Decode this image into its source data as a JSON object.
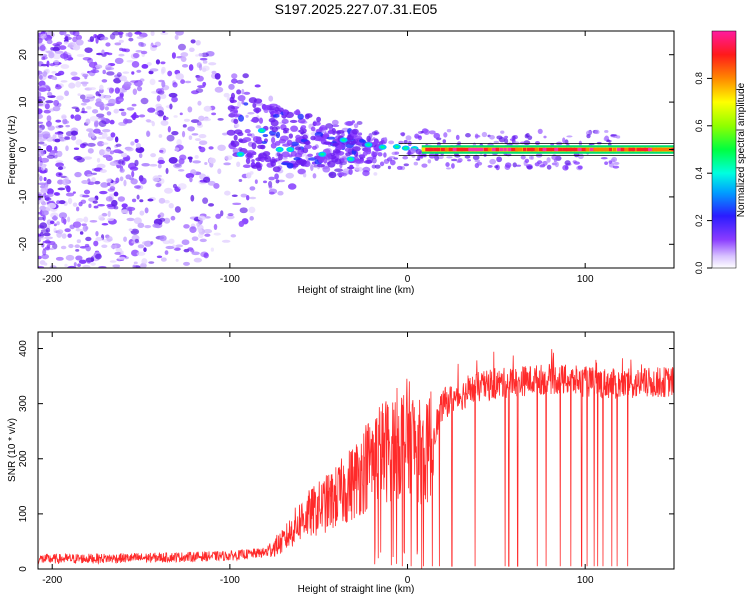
{
  "title": "S197.2025.227.07.31.E05",
  "colors": {
    "snr_line": "#ff2a2a",
    "spectro_base": "#7a2cff",
    "axis": "#000000",
    "background": "#ffffff"
  },
  "chart_data": [
    {
      "type": "heatmap",
      "name": "spectrogram",
      "xlabel": "Height of straight line (km)",
      "ylabel": "Frequency (Hz)",
      "xlim": [
        -208,
        150
      ],
      "ylim": [
        -25,
        25
      ],
      "xticks": [
        -200,
        -100,
        0,
        100
      ],
      "yticks": [
        -20,
        -10,
        0,
        10,
        20
      ],
      "xtick_labels": [
        "-200",
        "-100",
        "0",
        "100"
      ],
      "ytick_labels": [
        "-20",
        "-10",
        "0",
        "10",
        "20"
      ],
      "colorbar": {
        "label": "Normalized spectral amplitude",
        "range": [
          0,
          1
        ],
        "ticks": [
          0.0,
          0.2,
          0.4,
          0.6,
          0.8
        ],
        "tick_labels": [
          "0.0",
          "0.2",
          "0.4",
          "0.6",
          "0.8"
        ],
        "colormap": "rainbow (purple-blue-cyan-green-yellow-orange-red-pink)"
      },
      "features": [
        {
          "name": "scattered noise",
          "x_range": [
            -208,
            -80
          ],
          "freq_range": [
            -25,
            25
          ],
          "amplitude": 0.05
        },
        {
          "name": "converging band",
          "x_range": [
            -100,
            -20
          ],
          "freq_range": [
            -8,
            12
          ],
          "amplitude": 0.2
        },
        {
          "name": "narrow signal line",
          "x_range": [
            10,
            150
          ],
          "freq": 0,
          "amplitude": 0.9
        }
      ]
    },
    {
      "type": "line",
      "name": "snr",
      "xlabel": "Height of straight line (km)",
      "ylabel": "SNR (10 * v/v)",
      "xlim": [
        -208,
        150
      ],
      "ylim": [
        0,
        430
      ],
      "xticks": [
        -200,
        -100,
        0,
        100
      ],
      "yticks": [
        0,
        100,
        200,
        300,
        400
      ],
      "xtick_labels": [
        "-200",
        "-100",
        "0",
        "100"
      ],
      "ytick_labels": [
        "0",
        "100",
        "200",
        "300",
        "400"
      ],
      "series": [
        {
          "name": "SNR",
          "envelope": {
            "x": [
              -208,
              -150,
              -100,
              -80,
              -70,
              -60,
              -50,
              -40,
              -30,
              -20,
              -10,
              0,
              10,
              20,
              40,
              60,
              80,
              100,
              120,
              150
            ],
            "y": [
              18,
              20,
              24,
              30,
              50,
              90,
              110,
              130,
              160,
              200,
              220,
              240,
              200,
              300,
              330,
              340,
              345,
              340,
              335,
              340
            ]
          },
          "dropouts_x": [
            -3,
            2,
            9,
            14,
            18,
            25,
            38,
            55,
            57,
            62,
            73,
            78,
            86,
            92,
            98,
            101,
            105,
            107,
            110,
            115,
            118,
            124
          ]
        }
      ]
    }
  ]
}
